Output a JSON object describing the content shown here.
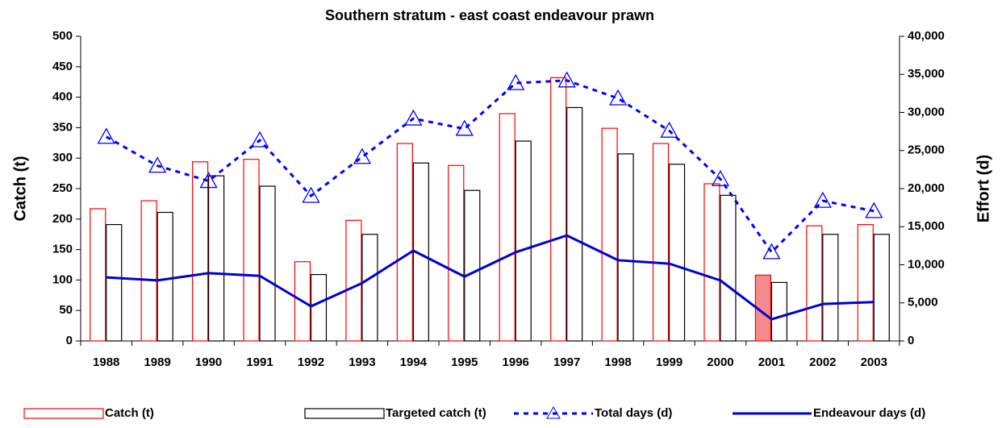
{
  "chart_data": {
    "type": "bar_line",
    "title": "Southern stratum - east coast endeavour prawn",
    "y_label": "Catch (t)",
    "y2_label": "Effort (d)",
    "categories": [
      "1988",
      "1989",
      "1990",
      "1991",
      "1992",
      "1993",
      "1994",
      "1995",
      "1996",
      "1997",
      "1998",
      "1999",
      "2000",
      "2001",
      "2002",
      "2003"
    ],
    "ylim": [
      0,
      500
    ],
    "yticks": [
      0,
      50,
      100,
      150,
      200,
      250,
      300,
      350,
      400,
      450,
      500
    ],
    "y2lim": [
      0,
      40000
    ],
    "y2ticks": [
      0,
      {
        "value": 5000,
        "label": "5,000"
      },
      {
        "value": 10000,
        "label": "10,000"
      },
      {
        "value": 15000,
        "label": "15,000"
      },
      {
        "value": 20000,
        "label": "20,000"
      },
      {
        "value": 25000,
        "label": "25,000"
      },
      {
        "value": 30000,
        "label": "30,000"
      },
      {
        "value": 35000,
        "label": "35,000"
      },
      {
        "value": 40000,
        "label": "40,000"
      }
    ],
    "series": [
      {
        "name": "Catch (t)",
        "kind": "bar",
        "color": "#ff0000",
        "highlight_index": 13,
        "highlight_fill": "#f48a8a",
        "values": [
          217,
          230,
          294,
          298,
          130,
          198,
          324,
          288,
          373,
          432,
          349,
          324,
          258,
          108,
          189,
          191
        ]
      },
      {
        "name": "Targeted catch (t)",
        "kind": "bar",
        "color": "#000000",
        "values": [
          191,
          211,
          271,
          254,
          109,
          175,
          292,
          247,
          328,
          383,
          307,
          290,
          239,
          96,
          175,
          175
        ]
      },
      {
        "name": "Total days (d)",
        "kind": "line",
        "axis": "y2",
        "color": "#0000ff",
        "dashed": true,
        "marker": "triangle",
        "values": [
          26800,
          23000,
          21000,
          26350,
          19050,
          24150,
          29200,
          27850,
          33850,
          34200,
          31850,
          27600,
          21250,
          11650,
          18400,
          17050
        ]
      },
      {
        "name": "Endeavour days (d)",
        "kind": "line",
        "axis": "y2",
        "color": "#0000cc",
        "dashed": false,
        "values": [
          8350,
          7950,
          8900,
          8550,
          4550,
          7600,
          11850,
          8450,
          11650,
          13850,
          10600,
          10150,
          7950,
          2850,
          4850,
          5100
        ]
      }
    ]
  }
}
